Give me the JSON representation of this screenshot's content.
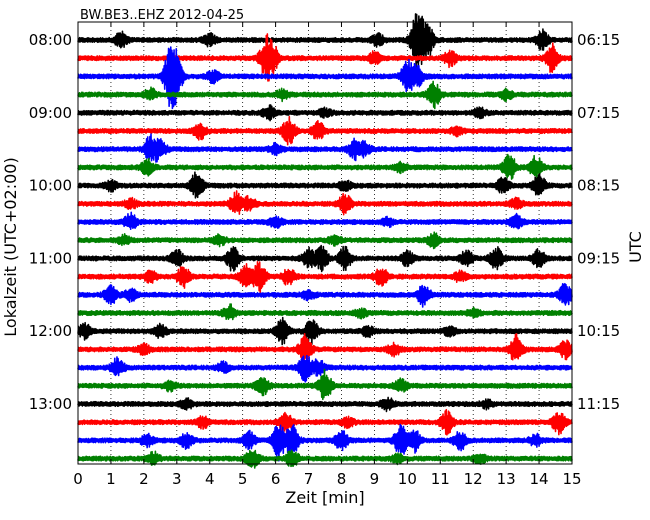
{
  "chart_data": {
    "type": "line",
    "title": "BW.BE3..EHZ 2012-04-25",
    "xlabel": "Zeit  [min]",
    "ylabel_left": "Lokalzeit (UTC+02:00)",
    "ylabel_right": "UTC",
    "xlim": [
      0,
      15
    ],
    "x_ticks": [
      "0",
      "1",
      "2",
      "3",
      "4",
      "5",
      "6",
      "7",
      "8",
      "9",
      "10",
      "11",
      "12",
      "13",
      "14",
      "15"
    ],
    "left_tick_labels": [
      "08:00",
      "09:00",
      "10:00",
      "11:00",
      "12:00",
      "13:00"
    ],
    "right_tick_labels": [
      "06:15",
      "07:15",
      "08:15",
      "09:15",
      "10:15",
      "11:15"
    ],
    "trace_interval_min": 15,
    "grid": "vertical dotted",
    "colors": [
      "#000000",
      "#ff0000",
      "#0000ff",
      "#008000"
    ],
    "traces": [
      {
        "start": "08:00",
        "color": "#000000",
        "bursts": [
          [
            10.3,
            3.0
          ],
          [
            10.6,
            2.0
          ],
          [
            14.1,
            1.0
          ],
          [
            1.3,
            0.8
          ],
          [
            4.0,
            0.6
          ],
          [
            9.1,
            0.6
          ]
        ]
      },
      {
        "start": "08:15",
        "color": "#ff0000",
        "bursts": [
          [
            5.7,
            2.0
          ],
          [
            5.9,
            1.5
          ],
          [
            14.4,
            1.6
          ],
          [
            11.3,
            0.8
          ],
          [
            9.0,
            0.6
          ]
        ]
      },
      {
        "start": "08:30",
        "color": "#0000ff",
        "bursts": [
          [
            2.8,
            3.0
          ],
          [
            3.0,
            2.0
          ],
          [
            10.0,
            1.6
          ],
          [
            10.3,
            1.0
          ],
          [
            4.1,
            0.6
          ]
        ]
      },
      {
        "start": "08:45",
        "color": "#008000",
        "bursts": [
          [
            10.8,
            1.4
          ],
          [
            2.2,
            0.6
          ],
          [
            6.2,
            0.5
          ],
          [
            13.0,
            0.5
          ]
        ]
      },
      {
        "start": "09:00",
        "color": "#000000",
        "bursts": [
          [
            5.8,
            0.7
          ],
          [
            12.2,
            0.5
          ],
          [
            7.5,
            0.4
          ]
        ]
      },
      {
        "start": "09:15",
        "color": "#ff0000",
        "bursts": [
          [
            6.4,
            1.4
          ],
          [
            7.3,
            1.0
          ],
          [
            3.7,
            0.8
          ],
          [
            11.5,
            0.4
          ]
        ]
      },
      {
        "start": "09:30",
        "color": "#0000ff",
        "bursts": [
          [
            2.2,
            1.4
          ],
          [
            2.5,
            1.0
          ],
          [
            8.4,
            1.0
          ],
          [
            8.7,
            0.7
          ],
          [
            6.0,
            0.5
          ]
        ]
      },
      {
        "start": "09:45",
        "color": "#008000",
        "bursts": [
          [
            13.1,
            1.4
          ],
          [
            13.9,
            1.2
          ],
          [
            2.1,
            0.8
          ],
          [
            9.8,
            0.5
          ]
        ]
      },
      {
        "start": "10:00",
        "color": "#000000",
        "bursts": [
          [
            3.6,
            1.4
          ],
          [
            14.0,
            1.1
          ],
          [
            12.9,
            0.8
          ],
          [
            8.1,
            0.5
          ],
          [
            1.0,
            0.5
          ]
        ]
      },
      {
        "start": "10:15",
        "color": "#ff0000",
        "bursts": [
          [
            4.8,
            1.2
          ],
          [
            8.1,
            1.0
          ],
          [
            5.2,
            0.7
          ],
          [
            1.6,
            0.5
          ],
          [
            13.3,
            0.5
          ]
        ]
      },
      {
        "start": "10:30",
        "color": "#0000ff",
        "bursts": [
          [
            1.6,
            0.9
          ],
          [
            6.0,
            0.6
          ],
          [
            13.3,
            0.7
          ],
          [
            9.4,
            0.4
          ]
        ]
      },
      {
        "start": "10:45",
        "color": "#008000",
        "bursts": [
          [
            10.8,
            0.7
          ],
          [
            1.4,
            0.5
          ],
          [
            4.3,
            0.5
          ],
          [
            7.8,
            0.4
          ]
        ]
      },
      {
        "start": "11:00",
        "color": "#000000",
        "bursts": [
          [
            4.7,
            1.3
          ],
          [
            7.4,
            1.3
          ],
          [
            8.1,
            1.2
          ],
          [
            7.0,
            1.0
          ],
          [
            3.0,
            0.9
          ],
          [
            12.7,
            1.2
          ],
          [
            11.8,
            0.9
          ],
          [
            14.0,
            1.0
          ],
          [
            10.0,
            0.8
          ]
        ]
      },
      {
        "start": "11:15",
        "color": "#ff0000",
        "bursts": [
          [
            5.5,
            1.6
          ],
          [
            5.1,
            1.2
          ],
          [
            3.2,
            1.1
          ],
          [
            6.4,
            0.9
          ],
          [
            9.2,
            1.0
          ],
          [
            2.2,
            0.6
          ],
          [
            11.6,
            0.5
          ]
        ]
      },
      {
        "start": "11:30",
        "color": "#0000ff",
        "bursts": [
          [
            1.0,
            1.0
          ],
          [
            10.5,
            1.2
          ],
          [
            14.8,
            1.2
          ],
          [
            1.6,
            0.6
          ],
          [
            7.0,
            0.5
          ]
        ]
      },
      {
        "start": "11:45",
        "color": "#008000",
        "bursts": [
          [
            4.6,
            0.8
          ],
          [
            12.0,
            0.4
          ],
          [
            8.6,
            0.4
          ]
        ]
      },
      {
        "start": "12:00",
        "color": "#000000",
        "bursts": [
          [
            6.2,
            1.3
          ],
          [
            7.1,
            1.3
          ],
          [
            0.2,
            0.8
          ],
          [
            2.5,
            0.7
          ],
          [
            8.8,
            0.5
          ],
          [
            11.3,
            0.5
          ]
        ]
      },
      {
        "start": "12:15",
        "color": "#ff0000",
        "bursts": [
          [
            6.9,
            1.5
          ],
          [
            13.3,
            1.5
          ],
          [
            14.8,
            1.0
          ],
          [
            9.6,
            0.6
          ],
          [
            2.0,
            0.5
          ]
        ]
      },
      {
        "start": "12:30",
        "color": "#0000ff",
        "bursts": [
          [
            1.2,
            1.0
          ],
          [
            6.9,
            1.4
          ],
          [
            7.3,
            0.8
          ],
          [
            4.4,
            0.5
          ]
        ]
      },
      {
        "start": "12:45",
        "color": "#008000",
        "bursts": [
          [
            7.5,
            1.6
          ],
          [
            5.6,
            1.1
          ],
          [
            9.8,
            0.7
          ],
          [
            2.8,
            0.5
          ]
        ]
      },
      {
        "start": "13:00",
        "color": "#000000",
        "bursts": [
          [
            9.4,
            0.6
          ],
          [
            3.3,
            0.5
          ],
          [
            12.4,
            0.4
          ]
        ]
      },
      {
        "start": "13:15",
        "color": "#ff0000",
        "bursts": [
          [
            6.3,
            1.0
          ],
          [
            11.2,
            1.3
          ],
          [
            14.6,
            1.2
          ],
          [
            3.8,
            0.6
          ],
          [
            8.2,
            0.5
          ]
        ]
      },
      {
        "start": "13:30",
        "color": "#0000ff",
        "bursts": [
          [
            6.1,
            2.0
          ],
          [
            6.5,
            1.6
          ],
          [
            9.8,
            1.7
          ],
          [
            10.2,
            1.2
          ],
          [
            8.0,
            1.0
          ],
          [
            5.2,
            0.9
          ],
          [
            11.6,
            1.0
          ],
          [
            3.3,
            0.8
          ],
          [
            2.1,
            0.6
          ],
          [
            13.9,
            0.6
          ]
        ]
      },
      {
        "start": "13:45",
        "color": "#008000",
        "bursts": [
          [
            5.3,
            1.1
          ],
          [
            6.5,
            0.9
          ],
          [
            12.2,
            0.5
          ],
          [
            2.3,
            0.6
          ],
          [
            9.7,
            0.4
          ]
        ]
      }
    ]
  }
}
